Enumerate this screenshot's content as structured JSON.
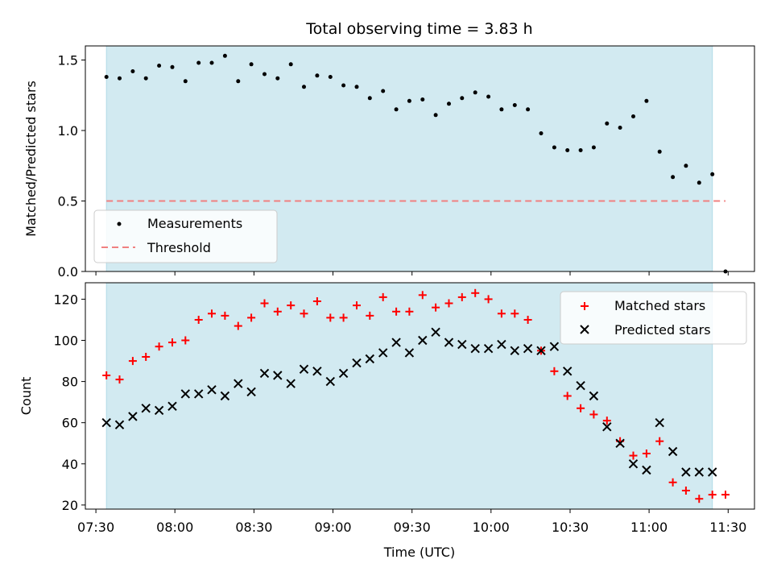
{
  "title": "Total observing time = 3.83 h",
  "colors": {
    "shade": "#add8e6",
    "threshold": "#f08080",
    "matched": "#ff0000",
    "predicted": "#000000",
    "measurement": "#000000"
  },
  "chart_data": [
    {
      "type": "scatter",
      "panel": "top",
      "ylabel": "Matched/Predicted stars",
      "ylim": [
        0,
        1.6
      ],
      "yticks": [
        0.0,
        0.5,
        1.0,
        1.5
      ],
      "ytick_labels": [
        "0.0",
        "0.5",
        "1.0",
        "1.5"
      ],
      "xlim": [
        "07:26",
        "11:40"
      ],
      "shaded_span": [
        "07:34",
        "11:24"
      ],
      "legend": {
        "placement": "lower-left",
        "entries": [
          "Measurements",
          "Threshold"
        ]
      },
      "threshold": {
        "name": "Threshold",
        "y": 0.5,
        "x_range": [
          "07:34",
          "11:29"
        ]
      },
      "series": [
        {
          "name": "Measurements",
          "x": [
            "07:34",
            "07:39",
            "07:44",
            "07:49",
            "07:54",
            "07:59",
            "08:04",
            "08:09",
            "08:14",
            "08:19",
            "08:24",
            "08:29",
            "08:34",
            "08:39",
            "08:44",
            "08:49",
            "08:54",
            "08:59",
            "09:04",
            "09:09",
            "09:14",
            "09:19",
            "09:24",
            "09:29",
            "09:34",
            "09:39",
            "09:44",
            "09:49",
            "09:54",
            "09:59",
            "10:04",
            "10:09",
            "10:14",
            "10:19",
            "10:24",
            "10:29",
            "10:34",
            "10:39",
            "10:44",
            "10:49",
            "10:54",
            "10:59",
            "11:04",
            "11:09",
            "11:14",
            "11:19",
            "11:24",
            "11:29"
          ],
          "y": [
            1.38,
            1.37,
            1.42,
            1.37,
            1.46,
            1.45,
            1.35,
            1.48,
            1.48,
            1.53,
            1.35,
            1.47,
            1.4,
            1.37,
            1.47,
            1.31,
            1.39,
            1.38,
            1.32,
            1.31,
            1.23,
            1.28,
            1.15,
            1.21,
            1.22,
            1.11,
            1.19,
            1.23,
            1.27,
            1.24,
            1.15,
            1.18,
            1.15,
            0.98,
            0.88,
            0.86,
            0.86,
            0.88,
            1.05,
            1.02,
            1.1,
            1.21,
            0.85,
            0.67,
            0.75,
            0.63,
            0.69,
            0.0
          ]
        }
      ]
    },
    {
      "type": "scatter",
      "panel": "bottom",
      "xlabel": "Time (UTC)",
      "ylabel": "Count",
      "ylim": [
        18,
        128
      ],
      "yticks": [
        20,
        40,
        60,
        80,
        100,
        120
      ],
      "ytick_labels": [
        "20",
        "40",
        "60",
        "80",
        "100",
        "120"
      ],
      "xlim": [
        "07:26",
        "11:40"
      ],
      "xticks": [
        "07:30",
        "08:00",
        "08:30",
        "09:00",
        "09:30",
        "10:00",
        "10:30",
        "11:00",
        "11:30"
      ],
      "shaded_span": [
        "07:34",
        "11:24"
      ],
      "legend": {
        "placement": "upper-right",
        "entries": [
          "Matched stars",
          "Predicted stars"
        ]
      },
      "series": [
        {
          "name": "Matched stars",
          "marker": "plus",
          "x": [
            "07:34",
            "07:39",
            "07:44",
            "07:49",
            "07:54",
            "07:59",
            "08:04",
            "08:09",
            "08:14",
            "08:19",
            "08:24",
            "08:29",
            "08:34",
            "08:39",
            "08:44",
            "08:49",
            "08:54",
            "08:59",
            "09:04",
            "09:09",
            "09:14",
            "09:19",
            "09:24",
            "09:29",
            "09:34",
            "09:39",
            "09:44",
            "09:49",
            "09:54",
            "09:59",
            "10:04",
            "10:09",
            "10:14",
            "10:19",
            "10:24",
            "10:29",
            "10:34",
            "10:39",
            "10:44",
            "10:49",
            "10:54",
            "10:59",
            "11:04",
            "11:09",
            "11:14",
            "11:19",
            "11:24",
            "11:29"
          ],
          "y": [
            83,
            81,
            90,
            92,
            97,
            99,
            100,
            110,
            113,
            112,
            107,
            111,
            118,
            114,
            117,
            113,
            119,
            111,
            111,
            117,
            112,
            121,
            114,
            114,
            122,
            116,
            118,
            121,
            123,
            120,
            113,
            113,
            110,
            95,
            85,
            73,
            67,
            64,
            61,
            51,
            44,
            45,
            51,
            31,
            27,
            23,
            25,
            25
          ]
        },
        {
          "name": "Predicted stars",
          "marker": "x",
          "x": [
            "07:34",
            "07:39",
            "07:44",
            "07:49",
            "07:54",
            "07:59",
            "08:04",
            "08:09",
            "08:14",
            "08:19",
            "08:24",
            "08:29",
            "08:34",
            "08:39",
            "08:44",
            "08:49",
            "08:54",
            "08:59",
            "09:04",
            "09:09",
            "09:14",
            "09:19",
            "09:24",
            "09:29",
            "09:34",
            "09:39",
            "09:44",
            "09:49",
            "09:54",
            "09:59",
            "10:04",
            "10:09",
            "10:14",
            "10:19",
            "10:24",
            "10:29",
            "10:34",
            "10:39",
            "10:44",
            "10:49",
            "10:54",
            "10:59",
            "11:04",
            "11:09",
            "11:14",
            "11:19",
            "11:24"
          ],
          "y": [
            60,
            59,
            63,
            67,
            66,
            68,
            74,
            74,
            76,
            73,
            79,
            75,
            84,
            83,
            79,
            86,
            85,
            80,
            84,
            89,
            91,
            94,
            99,
            94,
            100,
            104,
            99,
            98,
            96,
            96,
            98,
            95,
            96,
            95,
            97,
            85,
            78,
            73,
            58,
            50,
            40,
            37,
            60,
            46,
            36,
            36,
            36
          ]
        }
      ]
    }
  ]
}
